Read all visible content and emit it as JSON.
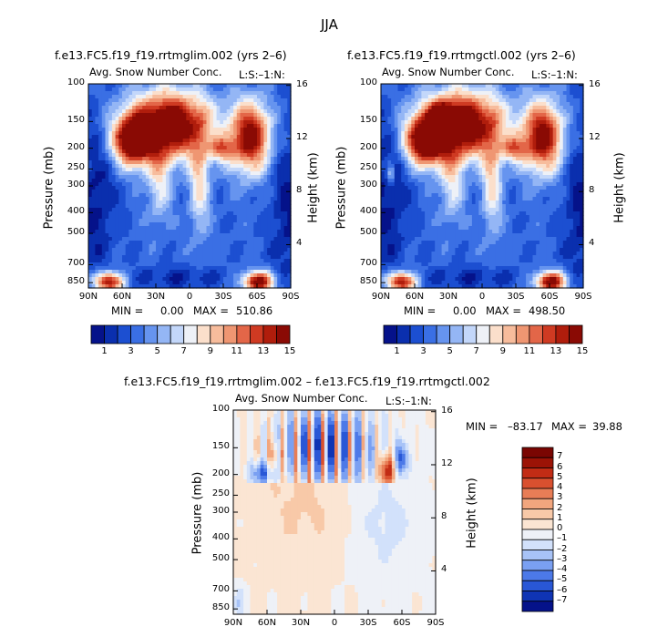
{
  "figure_title": "JJA",
  "colors": {
    "seq_palette": [
      "#05128a",
      "#0a2fae",
      "#1c4fd1",
      "#3a6fe4",
      "#6694ef",
      "#94b6f5",
      "#c3d7fa",
      "#eef1f7",
      "#fbdfcb",
      "#f7bc9c",
      "#ef9672",
      "#e36648",
      "#cf3a22",
      "#b01d0c",
      "#8a0a04"
    ],
    "diff_palette": [
      "#05128a",
      "#0f34b4",
      "#2957d6",
      "#4c79e8",
      "#7aa0f2",
      "#a8c3f7",
      "#d2e1fb",
      "#eef1f7",
      "#fbe5d3",
      "#f8c9a8",
      "#f2a67e",
      "#e87d56",
      "#d9502f",
      "#c22c15",
      "#9c1306",
      "#7a0602"
    ]
  },
  "chart_data": [
    {
      "type": "heatmap",
      "panel": "left",
      "title": "f.e13.FC5.f19_f19.rrtmglim.002 (yrs 2–6)",
      "subtitle": "Avg. Snow Number Conc.",
      "subtitle_right": "L:S:–1:N:",
      "xlabel": "",
      "ylabel": "Pressure (mb)",
      "ylabel_right": "Height (km)",
      "x_ticks": [
        "90N",
        "60N",
        "30N",
        "0",
        "30S",
        "60S",
        "90S"
      ],
      "y_ticks": [
        "100",
        "150",
        "200",
        "250",
        "300",
        "400",
        "500",
        "700",
        "850"
      ],
      "y_ticks_right": [
        "16",
        "12",
        "8",
        "4"
      ],
      "min_label": "MIN =",
      "min_value": "0.00",
      "max_label": "MAX =",
      "max_value": "510.86",
      "colorbar_labels": [
        "1",
        "3",
        "5",
        "7",
        "9",
        "11",
        "13",
        "15"
      ]
    },
    {
      "type": "heatmap",
      "panel": "right",
      "title": "f.e13.FC5.f19_f19.rrtmgctl.002 (yrs 2–6)",
      "subtitle": "Avg. Snow Number Conc.",
      "subtitle_right": "L:S:–1:N:",
      "xlabel": "",
      "ylabel": "Pressure (mb)",
      "ylabel_right": "Height (km)",
      "x_ticks": [
        "90N",
        "60N",
        "30N",
        "0",
        "30S",
        "60S",
        "90S"
      ],
      "y_ticks": [
        "100",
        "150",
        "200",
        "250",
        "300",
        "400",
        "500",
        "700",
        "850"
      ],
      "y_ticks_right": [
        "16",
        "12",
        "8",
        "4"
      ],
      "min_label": "MIN =",
      "min_value": "0.00",
      "max_label": "MAX =",
      "max_value": "498.50",
      "colorbar_labels": [
        "1",
        "3",
        "5",
        "7",
        "9",
        "11",
        "13",
        "15"
      ]
    },
    {
      "type": "heatmap",
      "panel": "difference",
      "title": "f.e13.FC5.f19_f19.rrtmglim.002 – f.e13.FC5.f19_f19.rrtmgctl.002",
      "subtitle": "Avg. Snow Number Conc.",
      "subtitle_right": "L:S:–1:N:",
      "xlabel": "",
      "ylabel": "Pressure (mb)",
      "ylabel_right": "Height (km)",
      "x_ticks": [
        "90N",
        "60N",
        "30N",
        "0",
        "30S",
        "60S",
        "90S"
      ],
      "y_ticks": [
        "100",
        "150",
        "200",
        "250",
        "300",
        "400",
        "500",
        "700",
        "850"
      ],
      "y_ticks_right": [
        "16",
        "12",
        "8",
        "4"
      ],
      "min_label": "MIN =",
      "min_value": "–83.17",
      "max_label": "MAX =",
      "max_value": "39.88",
      "colorbar_labels": [
        "7",
        "6",
        "5",
        "4",
        "3",
        "2",
        "1",
        "0",
        "–1",
        "–2",
        "–3",
        "–4",
        "–5",
        "–6",
        "–7"
      ]
    }
  ]
}
